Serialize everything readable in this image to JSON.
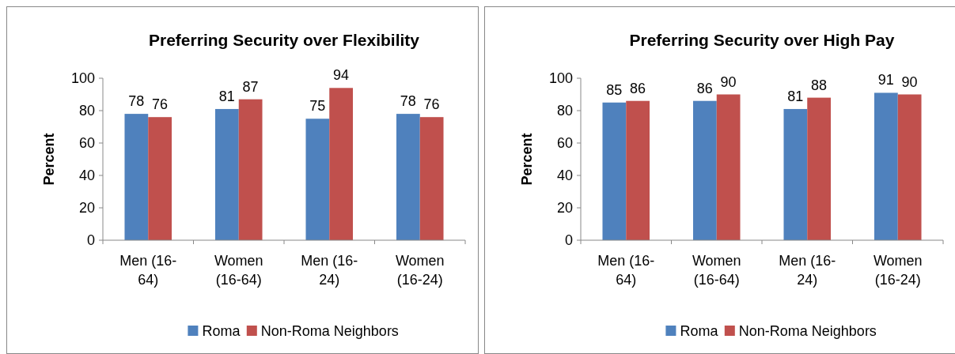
{
  "chart_data": [
    {
      "type": "bar",
      "title": "Preferring Security over Flexibility",
      "ylabel": "Percent",
      "categories": [
        "Men (16-64)",
        "Women (16-64)",
        "Men (16-24)",
        "Women (16-24)"
      ],
      "series": [
        {
          "name": "Roma",
          "color": "#4f81bd",
          "values": [
            78,
            81,
            75,
            78
          ]
        },
        {
          "name": "Non-Roma Neighbors",
          "color": "#c0504d",
          "values": [
            76,
            87,
            94,
            76
          ]
        }
      ],
      "ylim": [
        0,
        100
      ],
      "yticks": [
        0,
        20,
        40,
        60,
        80,
        100
      ],
      "data_labels": true,
      "legend": "bottom"
    },
    {
      "type": "bar",
      "title": "Preferring Security over High Pay",
      "ylabel": "Percent",
      "categories": [
        "Men (16-64)",
        "Women (16-64)",
        "Men (16-24)",
        "Women (16-24)"
      ],
      "series": [
        {
          "name": "Roma",
          "color": "#4f81bd",
          "values": [
            85,
            86,
            81,
            91
          ]
        },
        {
          "name": "Non-Roma Neighbors",
          "color": "#c0504d",
          "values": [
            86,
            90,
            88,
            90
          ]
        }
      ],
      "ylim": [
        0,
        100
      ],
      "yticks": [
        0,
        20,
        40,
        60,
        80,
        100
      ],
      "data_labels": true,
      "legend": "bottom"
    }
  ]
}
